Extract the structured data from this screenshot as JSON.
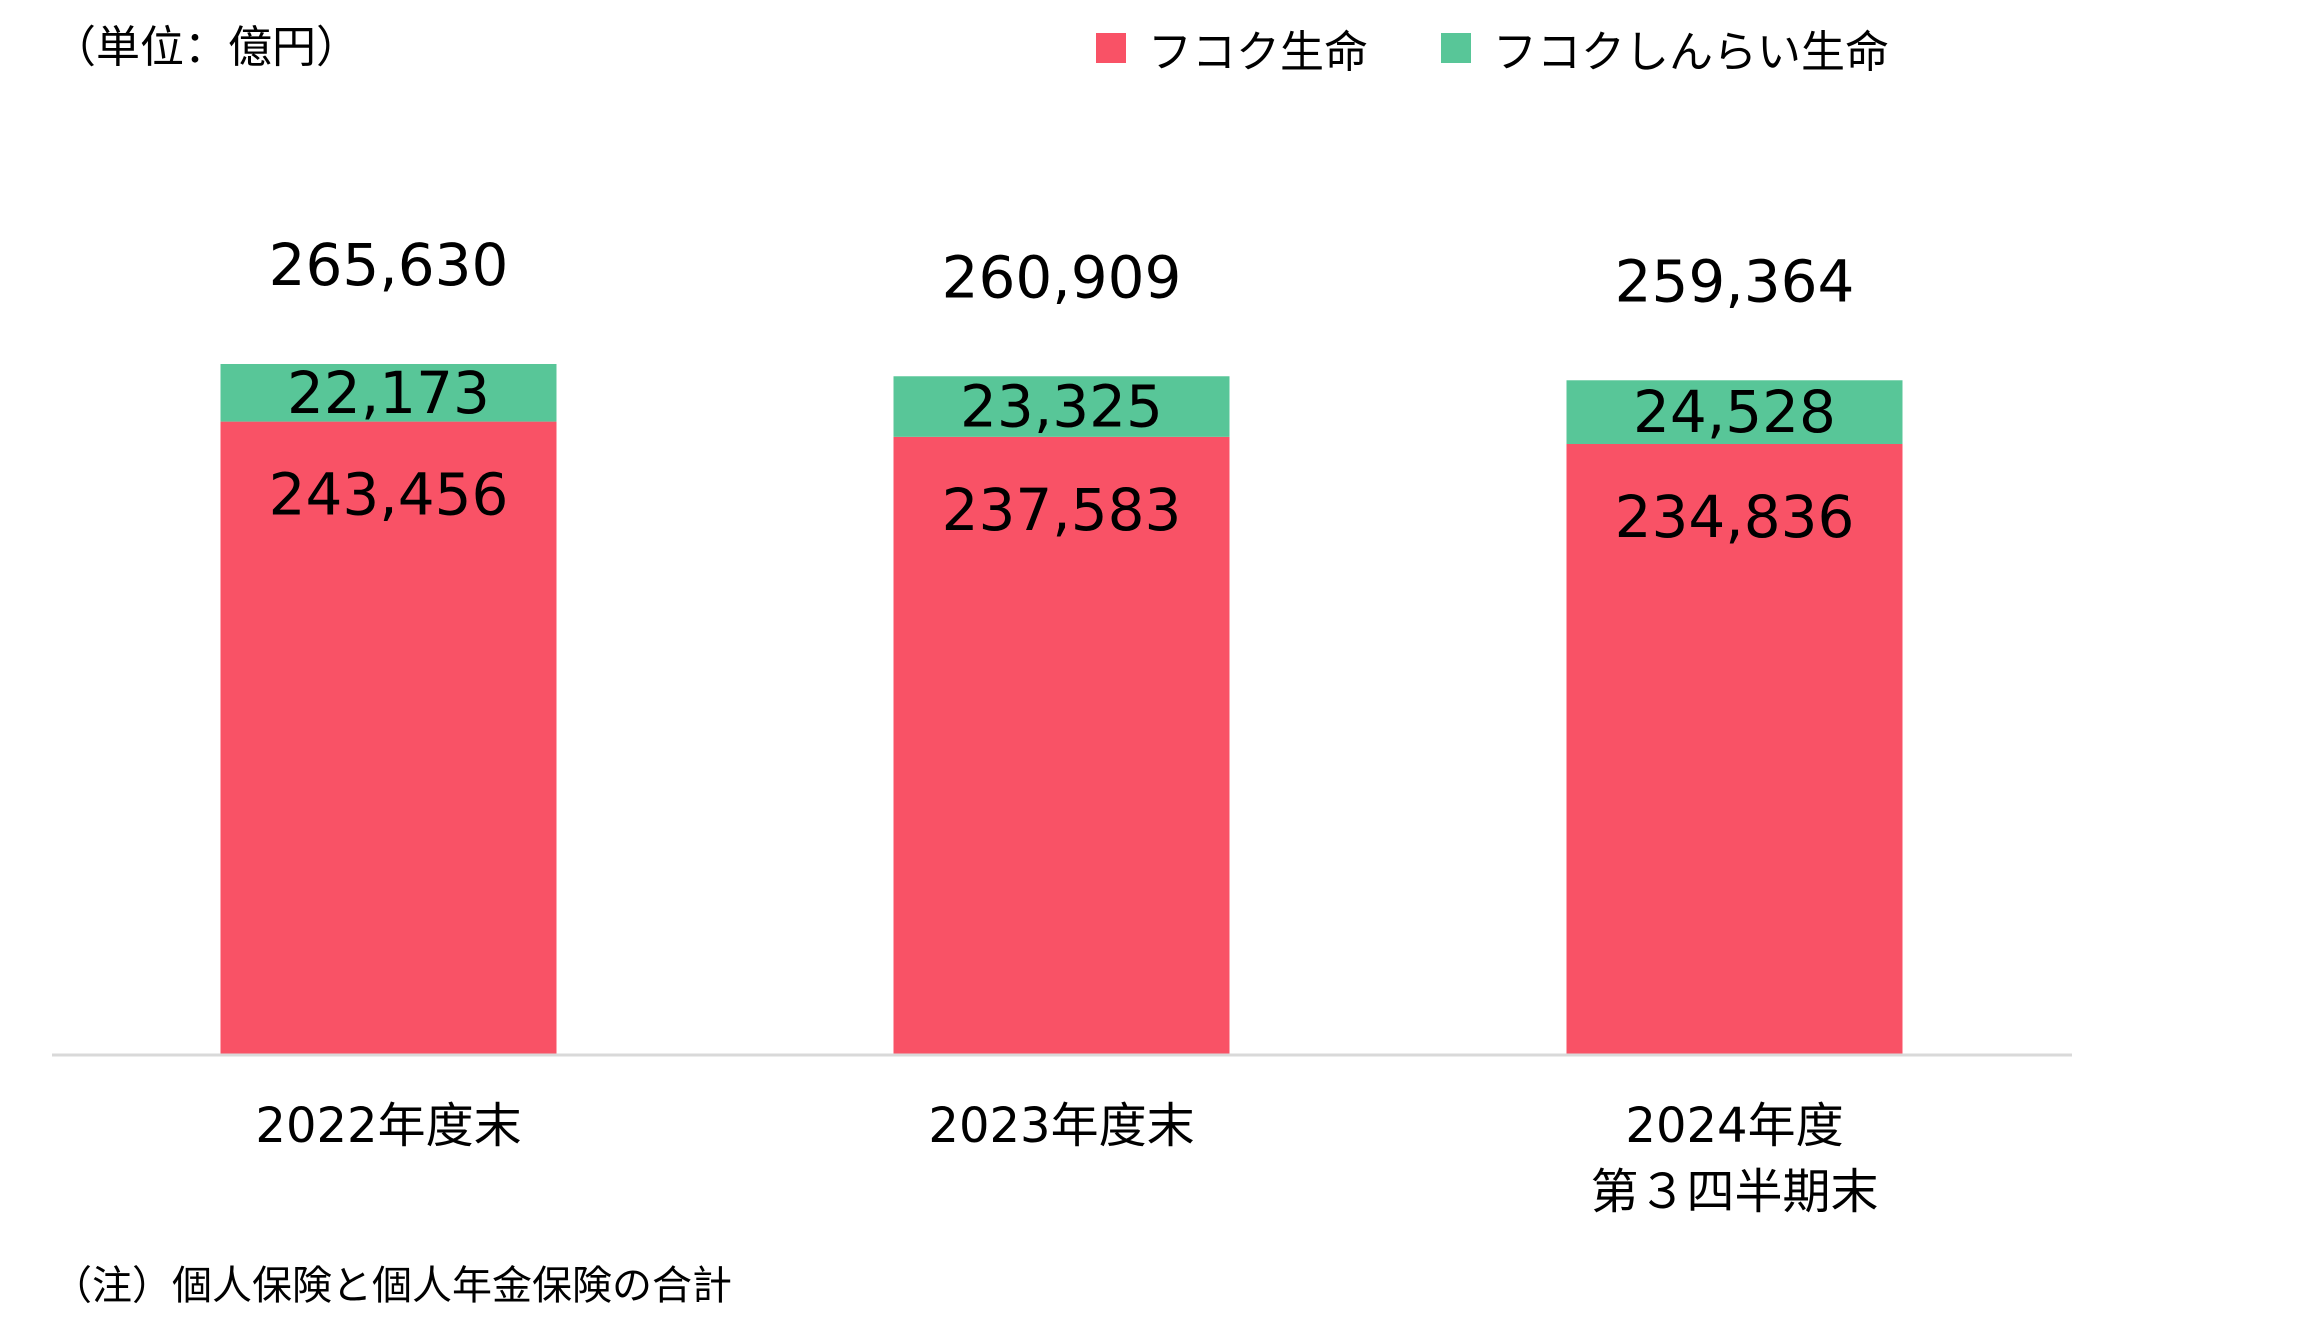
{
  "unit_label": "（単位：億円）",
  "note": "（注）個人保険と個人年金保険の合計",
  "legend": [
    {
      "label": "フコク生命",
      "color": "#F95266"
    },
    {
      "label": "フコクしんらい生命",
      "color": "#58C698"
    }
  ],
  "chart_data": {
    "type": "bar",
    "stacked": true,
    "categories": [
      [
        "2022年度末"
      ],
      [
        "2023年度末"
      ],
      [
        "2024年度",
        "第３四半期末"
      ]
    ],
    "series": [
      {
        "name": "フコク生命",
        "color": "#F95266",
        "values": [
          243456,
          237583,
          234836
        ],
        "labels": [
          "243,456",
          "237,583",
          "234,836"
        ]
      },
      {
        "name": "フコクしんらい生命",
        "color": "#58C698",
        "values": [
          22173,
          23325,
          24528
        ],
        "labels": [
          "22,173",
          "23,325",
          "24,528"
        ]
      }
    ],
    "totals": [
      265630,
      260909,
      259364
    ],
    "total_labels": [
      "265,630",
      "260,909",
      "259,364"
    ],
    "ylim": [
      0,
      300000
    ],
    "grid": false,
    "legend_position": "top-right"
  }
}
